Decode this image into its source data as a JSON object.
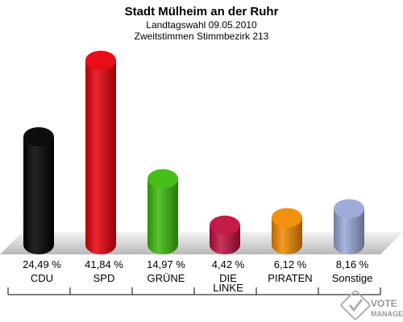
{
  "chart_data": {
    "type": "bar",
    "title": "Stadt Mülheim an der Ruhr",
    "subtitle_lines": [
      "Landtagswahl 09.05.2010",
      "Zweitstimmen Stimmbezirk 213"
    ],
    "categories": [
      {
        "label_lines": [
          "CDU"
        ],
        "value": 24.49,
        "value_label": "24,49 %",
        "color": "#000000"
      },
      {
        "label_lines": [
          "SPD"
        ],
        "value": 41.84,
        "value_label": "41,84 %",
        "color": "#e8000b"
      },
      {
        "label_lines": [
          "GRÜNE"
        ],
        "value": 14.97,
        "value_label": "14,97 %",
        "color": "#3cba0c"
      },
      {
        "label_lines": [
          "DIE",
          "LINKE"
        ],
        "value": 4.42,
        "value_label": "4,42 %",
        "color": "#c0103f"
      },
      {
        "label_lines": [
          "PIRATEN"
        ],
        "value": 6.12,
        "value_label": "6,12 %",
        "color": "#f28a00"
      },
      {
        "label_lines": [
          "Sonstige"
        ],
        "value": 8.16,
        "value_label": "8,16 %",
        "color": "#9aa8d8"
      }
    ],
    "ylim": [
      0,
      41.84
    ],
    "grid": false,
    "legend": "none",
    "unit": "%"
  },
  "logo": {
    "line1": "VOTE",
    "line2": "MANAGER",
    "icon": "vote-check-icon"
  }
}
